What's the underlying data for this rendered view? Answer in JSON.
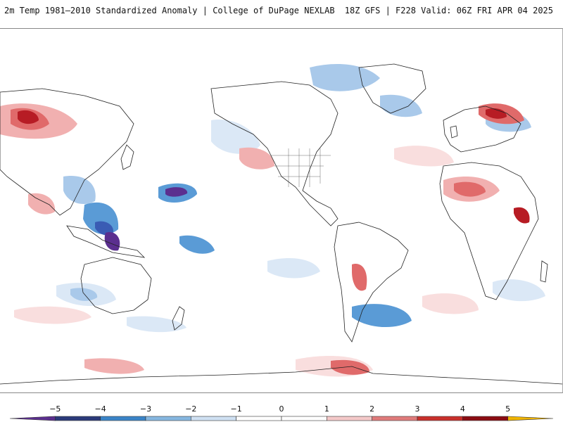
{
  "header": {
    "title": "2m Temp 1981–2010 Standardized Anomaly | College of DuPage NEXLAB",
    "run_info": "18Z GFS | F228 Valid: 06Z FRI APR 04 2025"
  },
  "legend": {
    "ticks": [
      "−5",
      "−4",
      "−3",
      "−2",
      "−1",
      "0",
      "1",
      "2",
      "3",
      "4",
      "5"
    ],
    "colors": [
      "#5b2f8f",
      "#2b3a7a",
      "#3a84c8",
      "#86b7e0",
      "#cfe0f2",
      "#ffffff",
      "#ffffff",
      "#f4c9c9",
      "#e07b7b",
      "#c9302c",
      "#8b0c12",
      "#f0b400"
    ]
  },
  "map": {
    "ocean_color": "#ffffff",
    "coast_color": "#222222",
    "cold_colors": [
      "#dbe8f6",
      "#a9c9ea",
      "#5a9bd6",
      "#3a5cb4",
      "#5b2f8f"
    ],
    "warm_colors": [
      "#f9dede",
      "#f1b0b0",
      "#e06a6a",
      "#b71c24"
    ]
  }
}
